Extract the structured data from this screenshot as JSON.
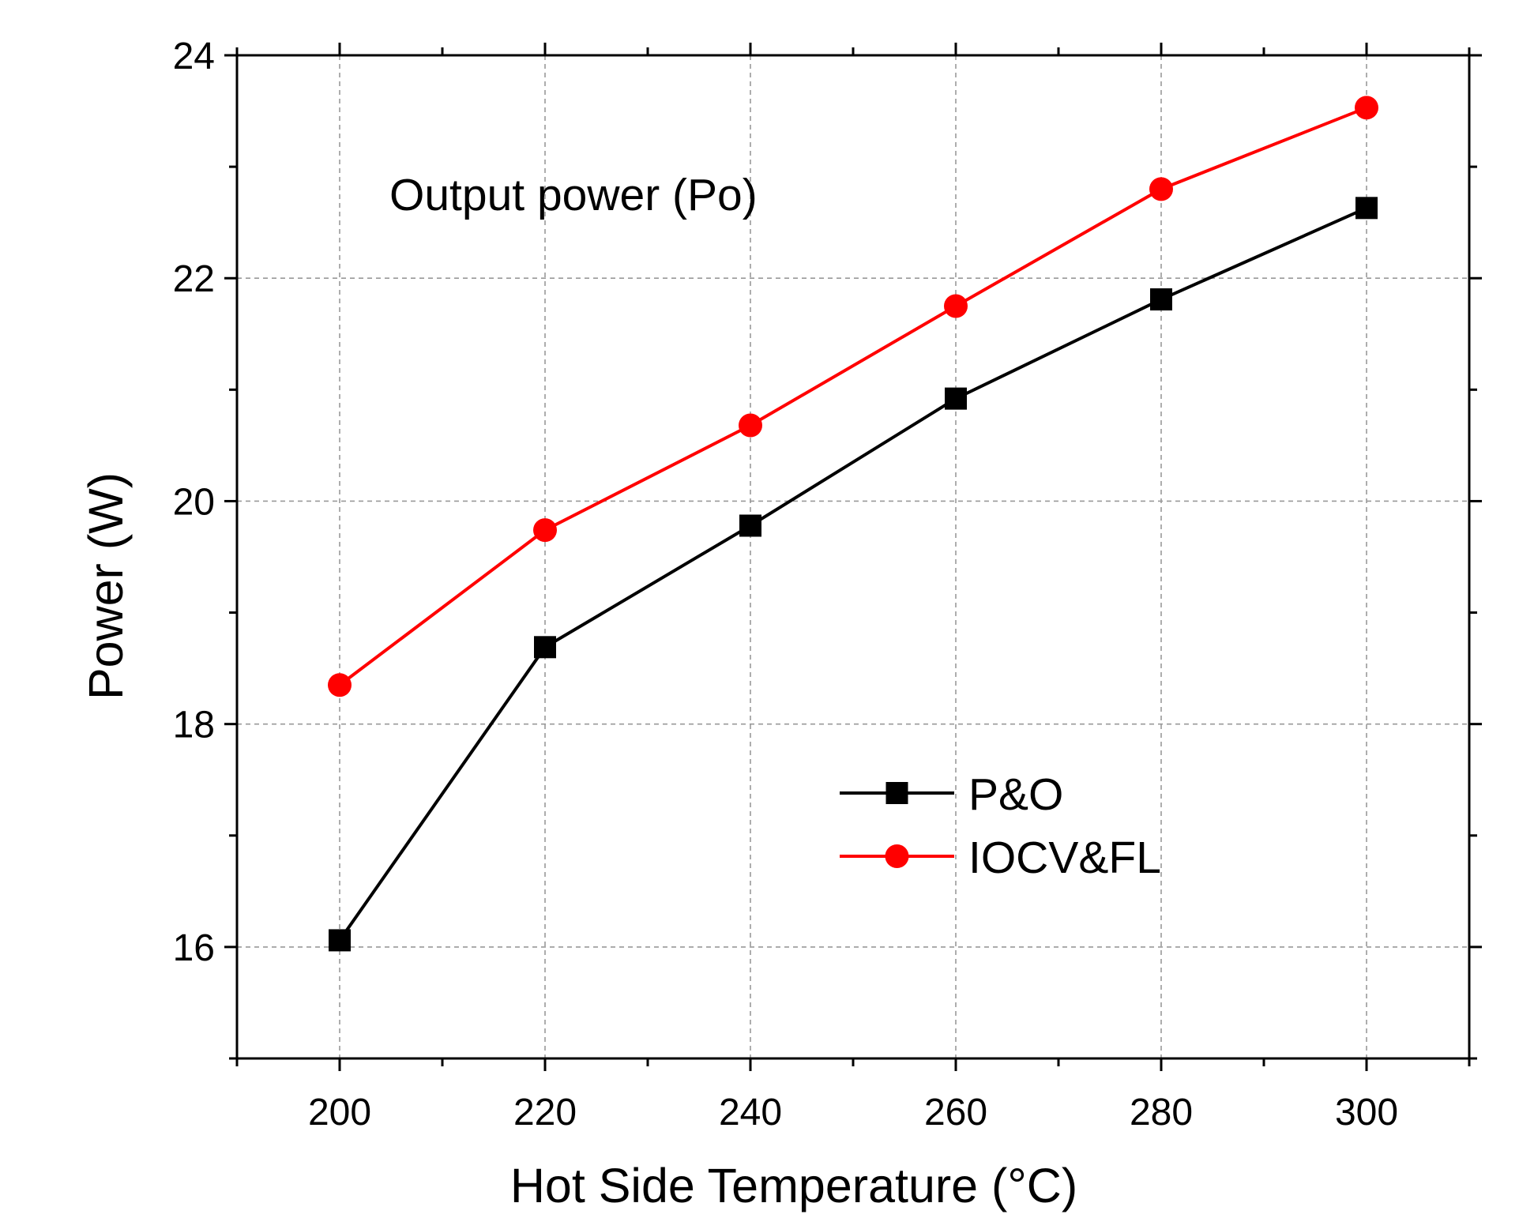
{
  "chart_data": {
    "type": "line",
    "title": "",
    "annotation": "Output power (Po)",
    "xlabel": "Hot Side Temperature (°C)",
    "ylabel": "Power (W)",
    "xlim": [
      190,
      310
    ],
    "ylim": [
      15,
      24
    ],
    "x": [
      200,
      220,
      240,
      260,
      280,
      300
    ],
    "x_ticks": [
      200,
      220,
      240,
      260,
      280,
      300
    ],
    "x_tick_labels": [
      "200",
      "220",
      "240",
      "260",
      "280",
      "300"
    ],
    "y_ticks": [
      16,
      18,
      20,
      22,
      24
    ],
    "y_tick_labels": [
      "16",
      "18",
      "20",
      "22",
      "24"
    ],
    "grid": true,
    "legend_position": "lower-right",
    "series": [
      {
        "name": "P&O",
        "color": "#000000",
        "marker": "square",
        "values": [
          16.06,
          18.69,
          19.78,
          20.92,
          21.81,
          22.63
        ]
      },
      {
        "name": "IOCV&FL",
        "color": "#ff0000",
        "marker": "circle",
        "values": [
          18.35,
          19.74,
          20.68,
          21.75,
          22.8,
          23.53
        ]
      }
    ]
  }
}
